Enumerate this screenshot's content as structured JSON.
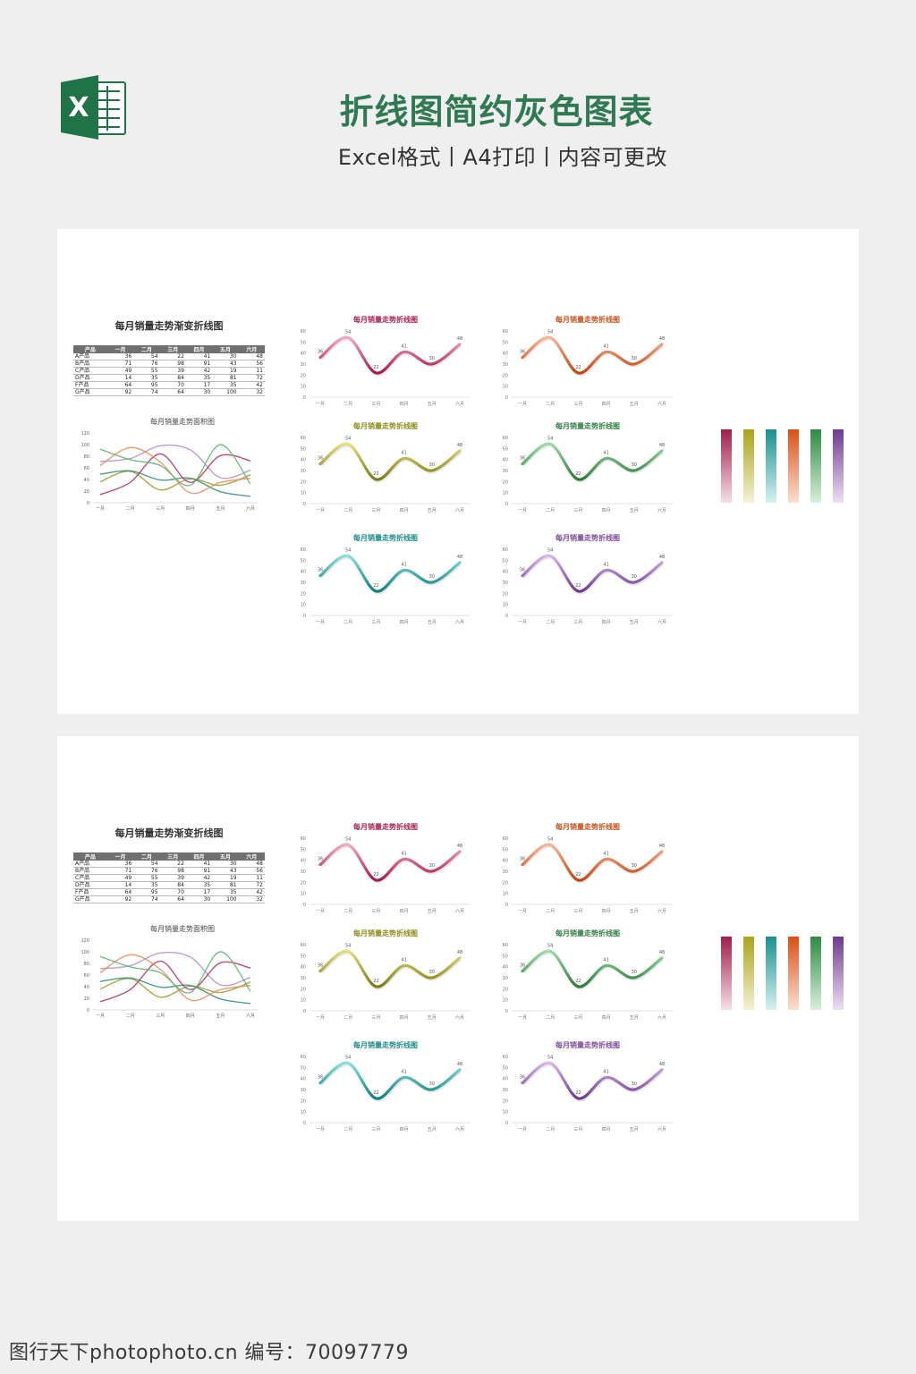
{
  "header": {
    "title": "折线图简约灰色图表",
    "subtitle": "Excel格式丨A4打印丨内容可更改",
    "logo_icon": "excel-icon",
    "logo_letter": "X",
    "brand_color": "#1f7346"
  },
  "table": {
    "title": "每月销量走势渐变折线图",
    "headers": [
      "产品",
      "一月",
      "二月",
      "三月",
      "四月",
      "五月",
      "六月"
    ],
    "rows": [
      {
        "label": "A产品",
        "values": [
          36,
          54,
          22,
          41,
          30,
          48
        ]
      },
      {
        "label": "B产品",
        "values": [
          71,
          76,
          98,
          91,
          43,
          56
        ]
      },
      {
        "label": "C产品",
        "values": [
          49,
          55,
          39,
          42,
          19,
          11
        ]
      },
      {
        "label": "D产品",
        "values": [
          14,
          35,
          84,
          35,
          81,
          72
        ]
      },
      {
        "label": "F产品",
        "values": [
          64,
          95,
          70,
          17,
          35,
          42
        ]
      },
      {
        "label": "G产品",
        "values": [
          92,
          74,
          64,
          30,
          100,
          32
        ]
      }
    ]
  },
  "chart_data": [
    {
      "type": "area",
      "title": "每月销量走势面积图",
      "categories": [
        "一月",
        "二月",
        "三月",
        "四月",
        "五月",
        "六月"
      ],
      "ylim": [
        0,
        120
      ],
      "yticks": [
        "0",
        "20",
        "40",
        "60",
        "80",
        "100",
        "120"
      ],
      "series": [
        {
          "name": "A产品",
          "values": [
            36,
            54,
            22,
            41,
            30,
            48
          ],
          "color": "#9a9a2a"
        },
        {
          "name": "B产品",
          "values": [
            71,
            76,
            98,
            91,
            43,
            56
          ],
          "color": "#b48cc8"
        },
        {
          "name": "C产品",
          "values": [
            49,
            55,
            39,
            42,
            19,
            11
          ],
          "color": "#2e8a78"
        },
        {
          "name": "D产品",
          "values": [
            14,
            35,
            84,
            35,
            81,
            72
          ],
          "color": "#b03060"
        },
        {
          "name": "F产品",
          "values": [
            64,
            95,
            70,
            17,
            35,
            42
          ],
          "color": "#e58a5a"
        },
        {
          "name": "G产品",
          "values": [
            92,
            74,
            64,
            30,
            100,
            32
          ],
          "color": "#5fb36f"
        }
      ]
    },
    {
      "type": "line",
      "charts_title": "每月销量走势折线图",
      "categories": [
        "一月",
        "二月",
        "三月",
        "四月",
        "五月",
        "六月"
      ],
      "ylim": [
        0,
        60
      ],
      "yticks": [
        "0",
        "10",
        "20",
        "30",
        "40",
        "50",
        "60"
      ],
      "values": [
        36,
        54,
        22,
        41,
        30,
        48
      ],
      "value_labels": [
        "36",
        "54",
        "22",
        "41",
        "30",
        "48"
      ],
      "palettes": [
        {
          "title_color": "#a8244e",
          "light": "#f3a9c5",
          "dark": "#a5184a"
        },
        {
          "title_color": "#c2531d",
          "light": "#f6b898",
          "dark": "#c24410"
        },
        {
          "title_color": "#8d8c1c",
          "light": "#e6e07c",
          "dark": "#7c7a12"
        },
        {
          "title_color": "#2f7f45",
          "light": "#9fdca8",
          "dark": "#2a7a3c"
        },
        {
          "title_color": "#1d8c89",
          "light": "#8be0de",
          "dark": "#0e7f7c"
        },
        {
          "title_color": "#7d4b9c",
          "light": "#d8b5ea",
          "dark": "#6e3a8e"
        }
      ]
    }
  ],
  "swatches": [
    {
      "top": "#9e1f4a",
      "bottom": "#f7dfe8"
    },
    {
      "top": "#a9a519",
      "bottom": "#f4f2d6"
    },
    {
      "top": "#19918e",
      "bottom": "#d7f1f0"
    },
    {
      "top": "#dc4f14",
      "bottom": "#fbe0d2"
    },
    {
      "top": "#2f8a43",
      "bottom": "#d9f0dc"
    },
    {
      "top": "#6e3a8e",
      "bottom": "#ece0f4"
    }
  ],
  "watermark": "图行天下photophoto.cn  编号：70097779"
}
